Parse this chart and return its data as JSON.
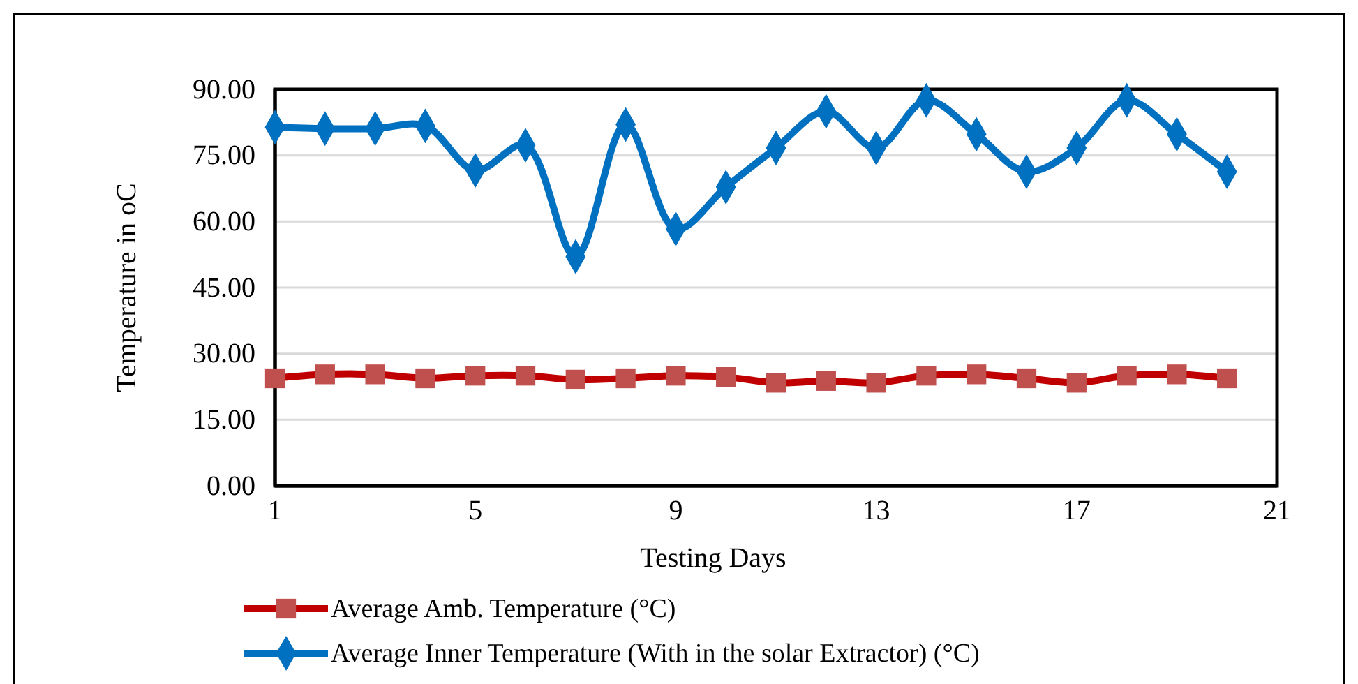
{
  "chart_data": {
    "type": "line",
    "xlabel": "Testing Days",
    "ylabel": "Temperature in oC",
    "x": [
      1,
      2,
      3,
      4,
      5,
      6,
      7,
      8,
      9,
      10,
      11,
      12,
      13,
      14,
      15,
      16,
      17,
      18,
      19,
      20
    ],
    "series": [
      {
        "name": "Average Amb. Temperature (°C)",
        "color": "#c00000",
        "marker": "square",
        "values": [
          24.4,
          25.3,
          25.3,
          24.4,
          25,
          25,
          24.1,
          24.4,
          25,
          24.7,
          23.4,
          23.8,
          23.4,
          25,
          25.3,
          24.4,
          23.4,
          25,
          25.3,
          24.4
        ]
      },
      {
        "name": "Average Inner Temperature (With in the solar Extractor) (°C)",
        "color": "#0070c0",
        "marker": "diamond",
        "values": [
          81.4,
          81.1,
          81.1,
          81.7,
          71.6,
          77.3,
          52,
          82,
          58.3,
          67.8,
          76.7,
          85,
          76.7,
          87.5,
          79.8,
          71.3,
          76.7,
          87.5,
          79.8,
          71.3
        ]
      }
    ],
    "xlim": [
      1,
      21
    ],
    "xticks": [
      1,
      5,
      9,
      13,
      17,
      21
    ],
    "ylim": [
      0,
      90
    ],
    "yticks": [
      {
        "value": 0,
        "label": "0.00"
      },
      {
        "value": 15,
        "label": "15.00"
      },
      {
        "value": 30,
        "label": "30.00"
      },
      {
        "value": 45,
        "label": "45.00"
      },
      {
        "value": 60,
        "label": "60.00"
      },
      {
        "value": 75,
        "label": "75.00"
      },
      {
        "value": 90,
        "label": "90.00"
      }
    ],
    "grid": "y",
    "legend": "bottom",
    "line_style": "solid"
  }
}
